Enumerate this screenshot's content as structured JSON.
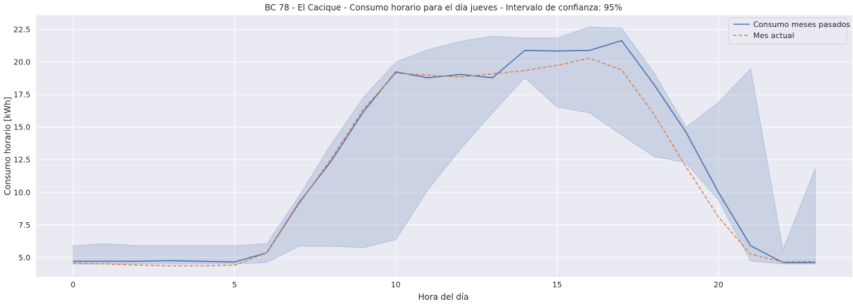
{
  "chart_data": {
    "type": "line",
    "title": "BC 78 - El Cacique - Consumo horario para el día jueves - Intervalo de confianza: 95%",
    "xlabel": "Hora del día",
    "ylabel": "Consumo horario [kWh]",
    "xlim": [
      -1.15,
      24.15
    ],
    "ylim": [
      3.5,
      23.6
    ],
    "xticks": [
      0,
      5,
      10,
      15,
      20
    ],
    "xtick_labels": [
      "0",
      "5",
      "10",
      "15",
      "20"
    ],
    "yticks": [
      5.0,
      7.5,
      10.0,
      12.5,
      15.0,
      17.5,
      20.0,
      22.5
    ],
    "ytick_labels": [
      "5.0",
      "7.5",
      "10.0",
      "12.5",
      "15.0",
      "17.5",
      "20.0",
      "22.5"
    ],
    "grid": true,
    "legend_position": "top-right",
    "x": [
      0,
      1,
      2,
      3,
      4,
      5,
      6,
      7,
      8,
      9,
      10,
      11,
      12,
      13,
      14,
      15,
      16,
      17,
      18,
      19,
      20,
      21,
      22,
      23
    ],
    "series": [
      {
        "name": "Consumo meses pasados",
        "style": "solid",
        "color": "#4c72b0",
        "values": [
          4.7,
          4.7,
          4.7,
          4.75,
          4.7,
          4.65,
          5.35,
          9.2,
          12.4,
          16.2,
          19.25,
          18.8,
          19.05,
          18.8,
          20.9,
          20.85,
          20.9,
          21.65,
          18.3,
          14.6,
          10.0,
          5.9,
          4.6,
          4.6
        ],
        "ci_lower": [
          4.5,
          4.5,
          4.5,
          4.5,
          4.5,
          4.5,
          4.6,
          5.85,
          5.85,
          5.75,
          6.35,
          10.2,
          13.3,
          16.1,
          18.8,
          16.55,
          16.1,
          14.4,
          12.75,
          12.25,
          9.4,
          4.7,
          4.5,
          4.5
        ],
        "ci_upper": [
          5.9,
          6.05,
          5.9,
          5.9,
          5.9,
          5.9,
          6.05,
          9.7,
          13.7,
          17.3,
          20.0,
          20.95,
          21.6,
          22.0,
          21.85,
          21.85,
          22.7,
          22.6,
          19.2,
          15.0,
          16.9,
          19.5,
          5.6,
          11.85
        ]
      },
      {
        "name": "Mes actual",
        "style": "dashed",
        "color": "#dd8452",
        "values": [
          4.55,
          4.5,
          4.4,
          4.35,
          4.35,
          4.4,
          5.35,
          9.1,
          12.6,
          16.4,
          19.15,
          19.0,
          18.85,
          19.1,
          19.35,
          19.75,
          20.3,
          19.4,
          16.0,
          11.95,
          8.1,
          5.25,
          4.65,
          4.7
        ]
      }
    ]
  },
  "colors": {
    "plot_background": "#eaeaf2",
    "grid": "#ffffff",
    "ci_fill": "#4c72b0"
  }
}
